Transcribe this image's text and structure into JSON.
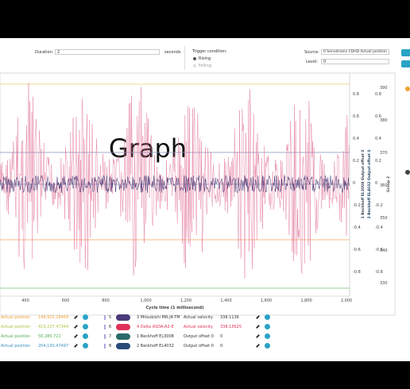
{
  "toolbar": {
    "duration_label": "Duration:",
    "duration_value": "2",
    "duration_unit": "seconds",
    "trigger_label": "Trigger condition:",
    "trigger_options": [
      "Rising",
      "Falling"
    ],
    "source_label": "Source:",
    "source_value": "0 Servotronix CDHD Actual position",
    "level_label": "Level:",
    "level_value": "0"
  },
  "graph": {
    "overlay": "Graph",
    "x_label": "Cycle time (1 millisecond)",
    "x_ticks": [
      "400",
      "600",
      "800",
      "1,000",
      "1,200",
      "1,400",
      "1,600",
      "1,800",
      "2,000"
    ],
    "axis1_ticks": [
      "0.8",
      "0.6",
      "0.4",
      "0.2",
      "0",
      "-0.2",
      "-0.4",
      "-0.6",
      "-0.8"
    ],
    "axis2_ticks": [
      "0.8",
      "0.6",
      "0.4",
      "0.2",
      "0",
      "-0.2",
      "-0.4",
      "-0.6",
      "-0.8"
    ],
    "axis3_ticks": [
      "390",
      "380",
      "370",
      "360",
      "350",
      "340",
      "330"
    ],
    "axis_titles": [
      "1 Beckhoff EL3008 Output offset 0",
      "2 Beckhoff EL4032 Output offset 0",
      "Group 2"
    ]
  },
  "channels_left": [
    {
      "name": "Actual position",
      "value": "144,925.26469"
    },
    {
      "name": "Actual position",
      "value": "419,237.47344"
    },
    {
      "name": "Actual position",
      "value": "56,280.722"
    },
    {
      "name": "Actual position",
      "value": "204,150.47497"
    }
  ],
  "channels_right": [
    {
      "index": "5",
      "device": "3 Mitsubishi MR-J4-TM",
      "name": "Actual velocity",
      "value": "338.1136"
    },
    {
      "index": "6",
      "device": "4 Delta ASDA-A2-E",
      "name": "Actual velocity",
      "value": "338.15625"
    },
    {
      "index": "7",
      "device": "1 Beckhoff EL3008",
      "name": "Output offset 0",
      "value": "0"
    },
    {
      "index": "8",
      "device": "2 Beckhoff EL4032",
      "name": "Output offset 0",
      "value": "0"
    }
  ]
}
